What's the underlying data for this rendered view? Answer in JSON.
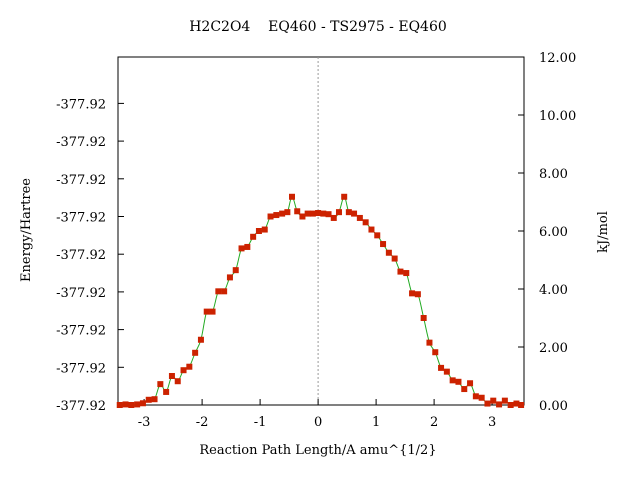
{
  "chart_data": {
    "type": "line",
    "title": "H2C2O4    EQ460 - TS2975 - EQ460",
    "xlabel": "Reaction Path Length/A amu^{1/2}",
    "ylabel_left": "Energy/Hartree",
    "ylabel_right": "kJ/mol",
    "xlim": [
      -3.45,
      3.55
    ],
    "ylim_right": [
      0,
      12.0
    ],
    "x_ticks": [
      -3,
      -2,
      -1,
      0,
      1,
      2,
      3
    ],
    "x_tick_labels": [
      "-3",
      "-2",
      "-1",
      "0",
      "1",
      "2",
      "3"
    ],
    "y_right_ticks": [
      0,
      2,
      4,
      6,
      8,
      10,
      12
    ],
    "y_right_tick_labels": [
      "0.00",
      "2.00",
      "4.00",
      "6.00",
      "8.00",
      "10.00",
      "12.00"
    ],
    "y_left_ticks": [
      0,
      1.3,
      2.6,
      3.9,
      5.2,
      6.5,
      7.8,
      9.1,
      10.4
    ],
    "y_left_tick_labels": [
      "-377.92",
      "-377.92",
      "-377.92",
      "-377.92",
      "-377.92",
      "-377.92",
      "-377.92",
      "-377.92",
      "-377.92"
    ],
    "reference_line_x": 0,
    "grid": false,
    "colors": {
      "line": "#22aa22",
      "marker": "#cc2200",
      "reference": "#999999"
    },
    "series": [
      {
        "x": [
          -3.42,
          -3.32,
          -3.22,
          -3.12,
          -3.02,
          -2.92,
          -2.82,
          -2.72,
          -2.62,
          -2.52,
          -2.42,
          -2.32,
          -2.22,
          -2.12,
          -2.02,
          -1.92,
          -1.82,
          -1.72,
          -1.62,
          -1.52,
          -1.42,
          -1.32,
          -1.22,
          -1.12,
          -1.02,
          -0.92,
          -0.82,
          -0.72,
          -0.62,
          -0.53,
          -0.45,
          -0.36,
          -0.27,
          -0.18,
          -0.09,
          0.0,
          0.09,
          0.18,
          0.27,
          0.36,
          0.45,
          0.53,
          0.62,
          0.72,
          0.82,
          0.92,
          1.02,
          1.12,
          1.22,
          1.32,
          1.42,
          1.52,
          1.62,
          1.72,
          1.82,
          1.92,
          2.02,
          2.12,
          2.22,
          2.32,
          2.42,
          2.52,
          2.62,
          2.72,
          2.82,
          2.92,
          3.02,
          3.12,
          3.22,
          3.32,
          3.42,
          3.5
        ],
        "y": [
          0.0,
          0.02,
          0.0,
          0.02,
          0.06,
          0.18,
          0.2,
          0.72,
          0.45,
          1.0,
          0.82,
          1.2,
          1.32,
          1.8,
          2.25,
          3.22,
          3.22,
          3.92,
          3.92,
          4.4,
          4.65,
          5.4,
          5.45,
          5.8,
          6.0,
          6.05,
          6.5,
          6.55,
          6.6,
          6.65,
          7.18,
          6.68,
          6.5,
          6.6,
          6.6,
          6.62,
          6.6,
          6.58,
          6.45,
          6.65,
          7.18,
          6.65,
          6.6,
          6.45,
          6.3,
          6.05,
          5.85,
          5.55,
          5.25,
          5.05,
          4.6,
          4.55,
          3.85,
          3.82,
          3.0,
          2.15,
          1.82,
          1.28,
          1.15,
          0.85,
          0.8,
          0.55,
          0.75,
          0.3,
          0.25,
          0.05,
          0.15,
          0.02,
          0.15,
          0.0,
          0.05,
          0.0
        ]
      }
    ]
  }
}
